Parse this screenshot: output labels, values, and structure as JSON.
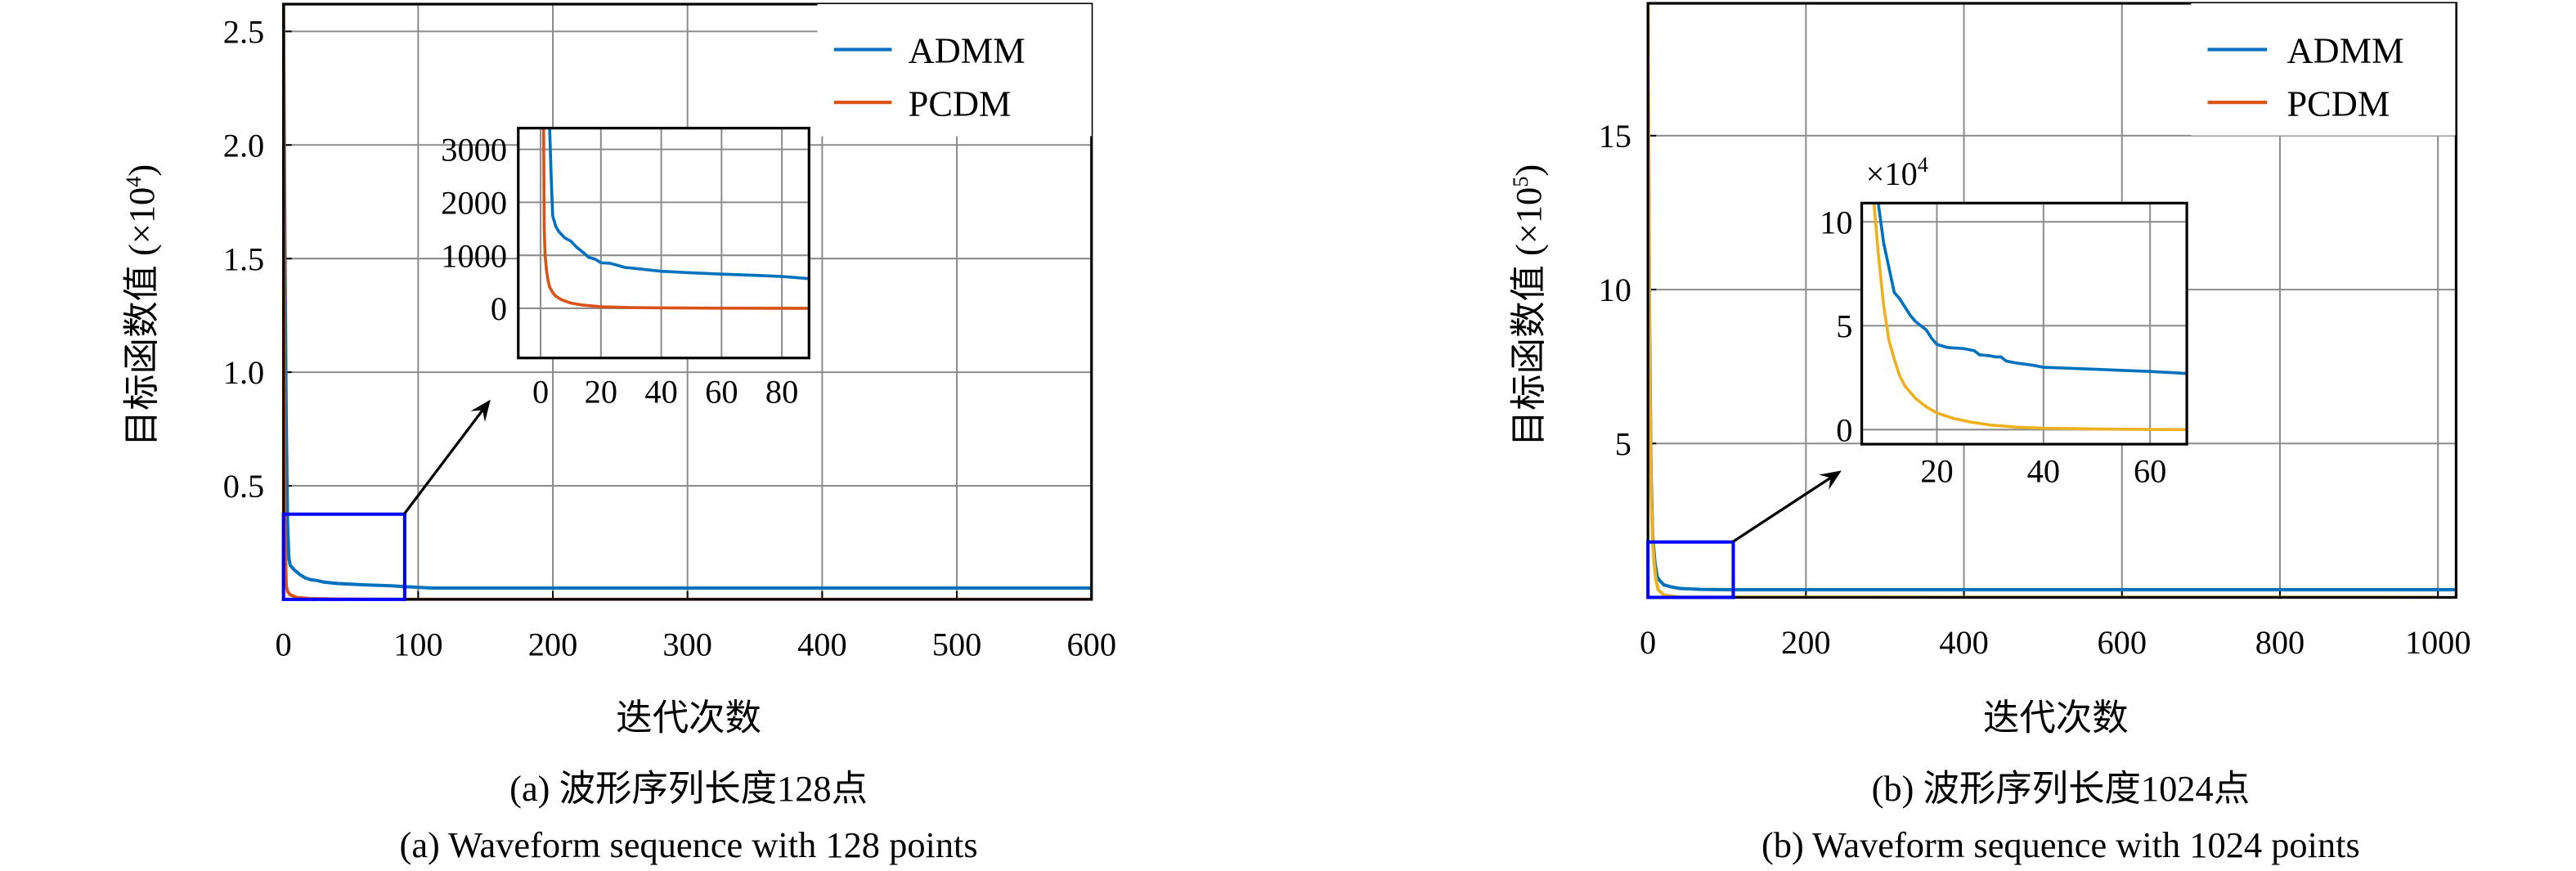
{
  "chart_data": [
    {
      "type": "line",
      "panel": "a",
      "caption_cn": "(a) 波形序列长度128点",
      "caption_en": "(a) Waveform sequence with 128 points",
      "xlabel": "迭代次数",
      "ylabel": "目标函数值 (×10⁴)",
      "ylabel_base": "目标函数值 (×10",
      "ylabel_exp": "4",
      "xlim": [
        0,
        600
      ],
      "ylim": [
        0,
        2.62
      ],
      "xticks": [
        0,
        100,
        200,
        300,
        400,
        500,
        600
      ],
      "yticks": [
        0.5,
        1.0,
        1.5,
        2.0,
        2.5
      ],
      "ytick_labels": [
        "0.5",
        "1.0",
        "1.5",
        "2.0",
        "2.5"
      ],
      "grid": true,
      "legend_position": "top-right",
      "series": [
        {
          "name": "ADMM",
          "color": "#0072BD",
          "x": [
            0,
            1,
            2,
            3,
            4,
            5,
            8,
            12,
            16,
            20,
            25,
            30,
            40,
            60,
            80,
            90,
            110,
            600
          ],
          "y": [
            2.62,
            1.6,
            0.8,
            0.34,
            0.18,
            0.15,
            0.13,
            0.11,
            0.095,
            0.087,
            0.083,
            0.076,
            0.07,
            0.064,
            0.06,
            0.056,
            0.05,
            0.05
          ]
        },
        {
          "name": "PCDM",
          "color": "#D95319",
          "x": [
            0,
            1,
            2,
            3,
            5,
            10,
            20,
            40,
            90,
            600
          ],
          "y": [
            2.62,
            0.34,
            0.06,
            0.035,
            0.02,
            0.008,
            0.003,
            0.001,
            0,
            0
          ]
        }
      ],
      "zoom_box": {
        "x": [
          0,
          90
        ],
        "y": [
          0,
          0.375
        ],
        "color": "#0000FF"
      },
      "inset": {
        "xlim": [
          -7.4,
          89
        ],
        "ylim": [
          -937,
          3400
        ],
        "xticks": [
          0,
          20,
          40,
          60,
          80
        ],
        "yticks": [
          0,
          1000,
          2000,
          3000
        ],
        "series": [
          {
            "name": "ADMM",
            "color": "#0072BD",
            "x": [
              3,
              3.5,
              4,
              5,
              6,
              8,
              10,
              12,
              14,
              16,
              18,
              20,
              23,
              25,
              28,
              30,
              35,
              40,
              50,
              60,
              70,
              80,
              89
            ],
            "y": [
              3400,
              2500,
              1750,
              1550,
              1450,
              1330,
              1270,
              1150,
              1060,
              960,
              930,
              860,
              850,
              820,
              770,
              760,
              730,
              700,
              670,
              645,
              625,
              600,
              560
            ]
          },
          {
            "name": "PCDM",
            "color": "#D95319",
            "x": [
              1,
              1.2,
              1.5,
              2,
              2.5,
              3,
              4,
              5,
              7,
              10,
              14,
              20,
              30,
              40,
              60,
              89
            ],
            "y": [
              3400,
              1500,
              1000,
              700,
              520,
              400,
              300,
              230,
              160,
              100,
              60,
              30,
              15,
              8,
              2,
              0
            ]
          }
        ]
      }
    },
    {
      "type": "line",
      "panel": "b",
      "caption_cn": "(b) 波形序列长度1024点",
      "caption_en": "(b) Waveform sequence with 1024 points",
      "xlabel": "迭代次数",
      "ylabel": "目标函数值 (×10⁵)",
      "ylabel_base": "目标函数值 (×10",
      "ylabel_exp": "5",
      "xlim": [
        0,
        1023
      ],
      "ylim": [
        0,
        19.3
      ],
      "xticks": [
        0,
        200,
        400,
        600,
        800,
        1000
      ],
      "yticks": [
        5,
        10,
        15
      ],
      "ytick_labels": [
        "5",
        "10",
        "15"
      ],
      "grid": true,
      "legend_position": "top-right",
      "series": [
        {
          "name": "ADMM",
          "color": "#0072BD",
          "x": [
            0,
            2,
            4,
            6,
            9,
            12,
            15,
            20,
            30,
            40,
            66,
            100,
            1023
          ],
          "y": [
            19.3,
            9,
            4,
            2,
            1.1,
            0.65,
            0.55,
            0.41,
            0.34,
            0.29,
            0.26,
            0.25,
            0.25
          ]
        },
        {
          "name": "PCDM",
          "color": "#EDB120",
          "legend_color": "#D95319",
          "x": [
            0,
            2,
            4,
            6,
            8,
            10,
            13,
            20,
            40,
            1000
          ],
          "y": [
            19.3,
            8,
            3.5,
            1.8,
            1.09,
            0.6,
            0.25,
            0.08,
            0.005,
            0
          ]
        }
      ],
      "zoom_box": {
        "x": [
          0,
          108
        ],
        "y": [
          0,
          1.8
        ],
        "color": "#0000FF"
      },
      "inset": {
        "multiplier": "×10",
        "multiplier_exp": "4",
        "xlim": [
          5.9,
          66.9
        ],
        "ylim": [
          -0.7,
          10.9
        ],
        "xticks": [
          20,
          40,
          60
        ],
        "yticks": [
          0,
          5,
          10
        ],
        "series": [
          {
            "name": "ADMM",
            "color": "#0072BD",
            "x": [
              9,
              10,
              11,
              12,
              13,
              14,
              15,
              16,
              17,
              18,
              19,
              20,
              22,
              25,
              26,
              27,
              28,
              30,
              31,
              32,
              33,
              35,
              38,
              40,
              45,
              50,
              55,
              60,
              66.9
            ],
            "y": [
              10.9,
              9,
              7.8,
              6.6,
              6.3,
              5.9,
              5.5,
              5.2,
              5.0,
              4.8,
              4.4,
              4.1,
              3.95,
              3.9,
              3.85,
              3.8,
              3.6,
              3.55,
              3.5,
              3.5,
              3.3,
              3.2,
              3.1,
              3.0,
              2.95,
              2.9,
              2.85,
              2.8,
              2.7
            ]
          },
          {
            "name": "PCDM",
            "color": "#EDB120",
            "x": [
              8.2,
              9,
              10,
              11,
              12,
              13,
              14,
              16,
              18,
              20,
              23,
              26,
              30,
              35,
              40,
              50,
              66.9
            ],
            "y": [
              10.9,
              8.5,
              6.0,
              4.3,
              3.4,
              2.6,
              2.1,
              1.5,
              1.1,
              0.8,
              0.55,
              0.38,
              0.22,
              0.12,
              0.07,
              0.03,
              0.0
            ]
          }
        ]
      }
    }
  ]
}
